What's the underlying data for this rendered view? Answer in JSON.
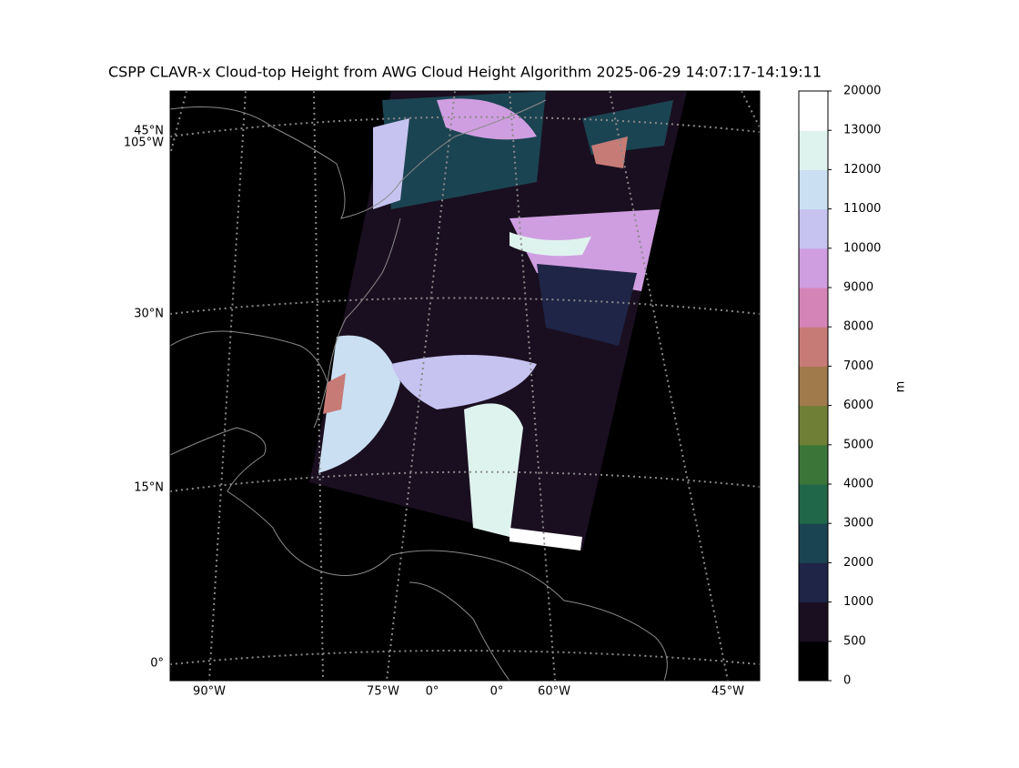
{
  "title": "CSPP CLAVR-x Cloud-top Height from AWG Cloud Height Algorithm 2025-06-29 14:07:17-14:19:11",
  "map": {
    "lat_labels": [
      "45°N",
      "105°W",
      "30°N",
      "15°N",
      "0°"
    ],
    "lon_labels": [
      "90°W",
      "75°W",
      "0°",
      "0°",
      "60°W",
      "45°W"
    ]
  },
  "colorbar": {
    "label": "m",
    "levels": [
      0,
      500,
      1000,
      2000,
      3000,
      4000,
      5000,
      6000,
      7000,
      8000,
      9000,
      10000,
      11000,
      12000,
      13000,
      20000
    ],
    "colors": [
      "#000000",
      "#1a0f20",
      "#1e2546",
      "#1b4452",
      "#1f6748",
      "#3c7538",
      "#6f7f36",
      "#a17a4b",
      "#c77b77",
      "#d584b8",
      "#cf9ee0",
      "#c6c3f0",
      "#cae0f2",
      "#dff3ee",
      "#ffffff"
    ]
  }
}
